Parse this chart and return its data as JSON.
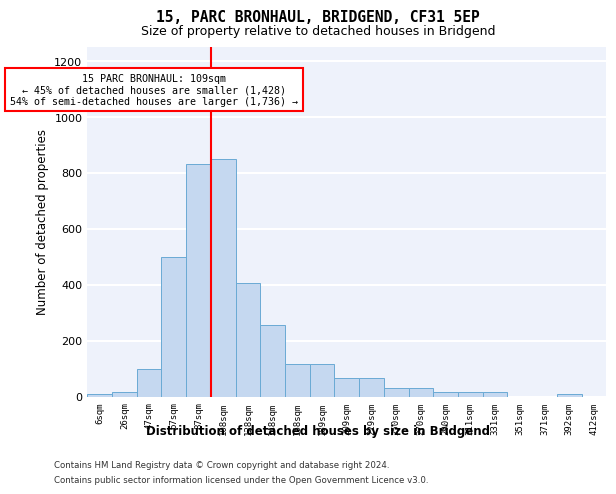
{
  "title1": "15, PARC BRONHAUL, BRIDGEND, CF31 5EP",
  "title2": "Size of property relative to detached houses in Bridgend",
  "xlabel": "Distribution of detached houses by size in Bridgend",
  "ylabel": "Number of detached properties",
  "bin_labels": [
    "6sqm",
    "26sqm",
    "47sqm",
    "67sqm",
    "87sqm",
    "108sqm",
    "128sqm",
    "148sqm",
    "168sqm",
    "189sqm",
    "209sqm",
    "229sqm",
    "250sqm",
    "270sqm",
    "290sqm",
    "311sqm",
    "331sqm",
    "351sqm",
    "371sqm",
    "392sqm",
    "412sqm"
  ],
  "bar_heights": [
    10,
    15,
    100,
    500,
    830,
    850,
    405,
    255,
    115,
    115,
    65,
    65,
    30,
    30,
    15,
    15,
    15,
    0,
    0,
    10,
    0
  ],
  "bar_color": "#c5d8f0",
  "bar_edge_color": "#6aaad4",
  "vline_color": "red",
  "annotation_text": "15 PARC BRONHAUL: 109sqm\n← 45% of detached houses are smaller (1,428)\n54% of semi-detached houses are larger (1,736) →",
  "annotation_box_color": "white",
  "annotation_box_edge": "red",
  "ylim": [
    0,
    1250
  ],
  "yticks": [
    0,
    200,
    400,
    600,
    800,
    1000,
    1200
  ],
  "footer1": "Contains HM Land Registry data © Crown copyright and database right 2024.",
  "footer2": "Contains public sector information licensed under the Open Government Licence v3.0.",
  "plot_bg_color": "#eef2fb"
}
